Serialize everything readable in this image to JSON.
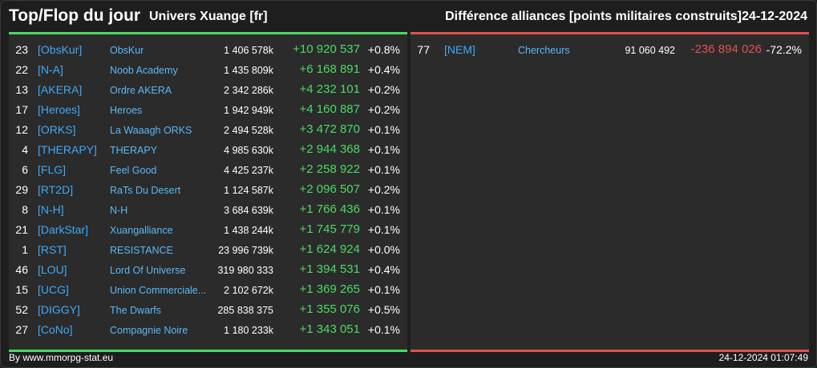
{
  "header": {
    "title": "Top/Flop du jour",
    "server": "Univers Xuange [fr]",
    "subtitle": "Différence alliances [points militaires construits]",
    "date": "24-12-2024"
  },
  "colors": {
    "positive": "#4cd964",
    "negative": "#e0524d",
    "tag": "#3fa9f5",
    "background": "#1e1e1e",
    "panel": "#2b2b2b"
  },
  "top": [
    {
      "rank": "23",
      "tag": "[ObsKur]",
      "name": "ObsKur",
      "points": "1 406 578k",
      "diff": "+10 920 537",
      "pct": "+0.8%"
    },
    {
      "rank": "22",
      "tag": "[N-A]",
      "name": "Noob Academy",
      "points": "1 435 809k",
      "diff": "+6 168 891",
      "pct": "+0.4%"
    },
    {
      "rank": "13",
      "tag": "[AKERA]",
      "name": "Ordre AKERA",
      "points": "2 342 286k",
      "diff": "+4 232 101",
      "pct": "+0.2%"
    },
    {
      "rank": "17",
      "tag": "[Heroes]",
      "name": "Heroes",
      "points": "1 942 949k",
      "diff": "+4 160 887",
      "pct": "+0.2%"
    },
    {
      "rank": "12",
      "tag": "[ORKS]",
      "name": "La Waaagh ORKS",
      "points": "2 494 528k",
      "diff": "+3 472 870",
      "pct": "+0.1%"
    },
    {
      "rank": "4",
      "tag": "[THERAPY]",
      "name": "THERAPY",
      "points": "4 985 630k",
      "diff": "+2 944 368",
      "pct": "+0.1%"
    },
    {
      "rank": "6",
      "tag": "[FLG]",
      "name": "Feel Good",
      "points": "4 425 237k",
      "diff": "+2 258 922",
      "pct": "+0.1%"
    },
    {
      "rank": "29",
      "tag": "[RT2D]",
      "name": "RaTs Du Desert",
      "points": "1 124 587k",
      "diff": "+2 096 507",
      "pct": "+0.2%"
    },
    {
      "rank": "8",
      "tag": "[N-H]",
      "name": "N-H",
      "points": "3 684 639k",
      "diff": "+1 766 436",
      "pct": "+0.1%"
    },
    {
      "rank": "21",
      "tag": "[DarkStar]",
      "name": "Xuangalliance",
      "points": "1 438 244k",
      "diff": "+1 745 779",
      "pct": "+0.1%"
    },
    {
      "rank": "1",
      "tag": "[RST]",
      "name": "RESISTANCE",
      "points": "23 996 739k",
      "diff": "+1 624 924",
      "pct": "+0.0%"
    },
    {
      "rank": "46",
      "tag": "[LOU]",
      "name": "Lord Of Universe",
      "points": "319 980 333",
      "diff": "+1 394 531",
      "pct": "+0.4%"
    },
    {
      "rank": "15",
      "tag": "[UCG]",
      "name": "Union Commerciale...",
      "points": "2 102 672k",
      "diff": "+1 369 265",
      "pct": "+0.1%"
    },
    {
      "rank": "52",
      "tag": "[DIGGY]",
      "name": "The Dwarfs",
      "points": "285 838 375",
      "diff": "+1 355 076",
      "pct": "+0.5%"
    },
    {
      "rank": "27",
      "tag": "[CoNo]",
      "name": "Compagnie Noire",
      "points": "1 180 233k",
      "diff": "+1 343 051",
      "pct": "+0.1%"
    }
  ],
  "flop": [
    {
      "rank": "77",
      "tag": "[NEM]",
      "name": "Chercheurs",
      "points": "91 060 492",
      "diff": "-236 894 026",
      "pct": "-72.2%"
    }
  ],
  "footer": {
    "source": "By www.mmorpg-stat.eu",
    "timestamp": "24-12-2024 01:07:49"
  }
}
